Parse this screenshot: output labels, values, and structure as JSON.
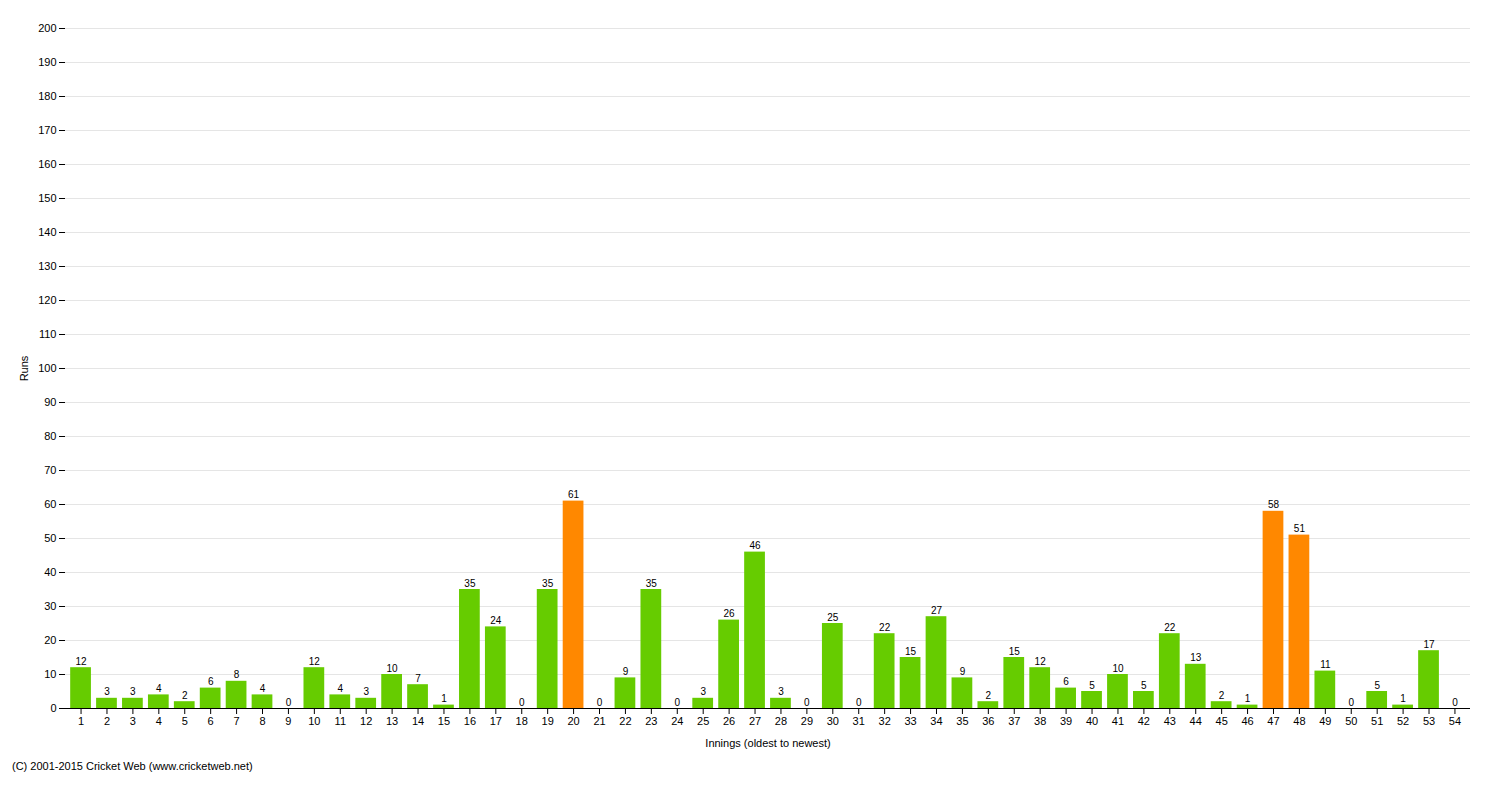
{
  "chart_data": {
    "type": "bar",
    "categories": [
      "1",
      "2",
      "3",
      "4",
      "5",
      "6",
      "7",
      "8",
      "9",
      "10",
      "11",
      "12",
      "13",
      "14",
      "15",
      "16",
      "17",
      "18",
      "19",
      "20",
      "21",
      "22",
      "23",
      "24",
      "25",
      "26",
      "27",
      "28",
      "29",
      "30",
      "31",
      "32",
      "33",
      "34",
      "35",
      "36",
      "37",
      "38",
      "39",
      "40",
      "41",
      "42",
      "43",
      "44",
      "45",
      "46",
      "47",
      "48",
      "49",
      "50",
      "51",
      "52",
      "53",
      "54"
    ],
    "values": [
      12,
      3,
      3,
      4,
      2,
      6,
      8,
      4,
      0,
      12,
      4,
      3,
      10,
      7,
      1,
      35,
      24,
      0,
      35,
      61,
      0,
      9,
      35,
      0,
      3,
      26,
      46,
      3,
      0,
      25,
      0,
      22,
      15,
      27,
      9,
      2,
      15,
      12,
      6,
      5,
      10,
      5,
      22,
      13,
      2,
      1,
      58,
      51,
      11,
      0,
      5,
      1,
      17,
      0
    ],
    "colors": [
      "#66cc00",
      "#66cc00",
      "#66cc00",
      "#66cc00",
      "#66cc00",
      "#66cc00",
      "#66cc00",
      "#66cc00",
      "#66cc00",
      "#66cc00",
      "#66cc00",
      "#66cc00",
      "#66cc00",
      "#66cc00",
      "#66cc00",
      "#66cc00",
      "#66cc00",
      "#66cc00",
      "#66cc00",
      "#ff8800",
      "#66cc00",
      "#66cc00",
      "#66cc00",
      "#66cc00",
      "#66cc00",
      "#66cc00",
      "#66cc00",
      "#66cc00",
      "#66cc00",
      "#66cc00",
      "#66cc00",
      "#66cc00",
      "#66cc00",
      "#66cc00",
      "#66cc00",
      "#66cc00",
      "#66cc00",
      "#66cc00",
      "#66cc00",
      "#66cc00",
      "#66cc00",
      "#66cc00",
      "#66cc00",
      "#66cc00",
      "#66cc00",
      "#66cc00",
      "#ff8800",
      "#ff8800",
      "#66cc00",
      "#66cc00",
      "#66cc00",
      "#66cc00",
      "#66cc00",
      "#66cc00"
    ],
    "xlabel": "Innings (oldest to newest)",
    "ylabel": "Runs",
    "ylim": [
      0,
      200
    ],
    "yticks": [
      0,
      10,
      20,
      30,
      40,
      50,
      60,
      70,
      80,
      90,
      100,
      110,
      120,
      130,
      140,
      150,
      160,
      170,
      180,
      190,
      200
    ],
    "grid": true,
    "data_labels": true,
    "annotations": [
      "(C) 2001-2015 Cricket Web (www.cricketweb.net)"
    ]
  }
}
